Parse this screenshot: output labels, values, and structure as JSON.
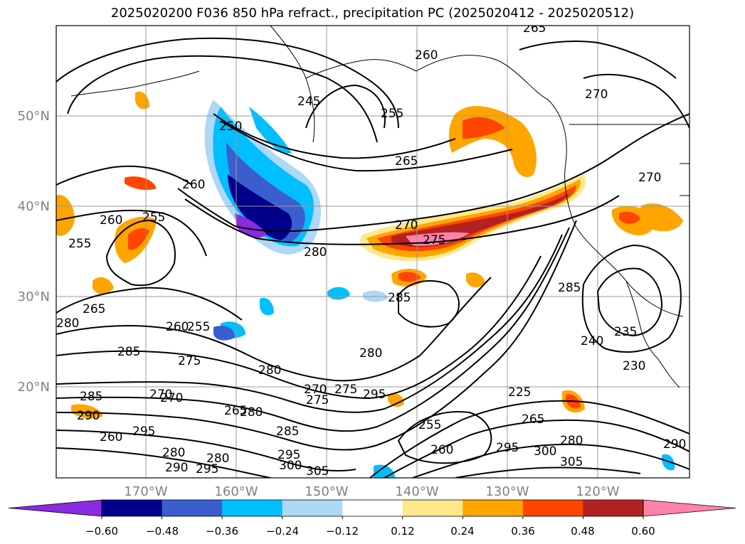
{
  "title": "2025020200 F036 850 hPa refract., precipitation PC (2025020412 - 2025020512)",
  "map": {
    "lon_ticks": [
      "170°W",
      "160°W",
      "150°W",
      "140°W",
      "130°W",
      "120°W"
    ],
    "lat_ticks": [
      "50°N",
      "40°N",
      "30°N",
      "20°N"
    ],
    "contour_labels": [
      "265",
      "260",
      "245",
      "255",
      "270",
      "250",
      "265",
      "270",
      "260",
      "255",
      "260",
      "255",
      "270",
      "275",
      "280",
      "280",
      "285",
      "285",
      "265",
      "260",
      "255",
      "280",
      "275",
      "280",
      "270",
      "275",
      "285",
      "295",
      "240",
      "235",
      "230",
      "225",
      "265",
      "280",
      "305",
      "300",
      "295",
      "290",
      "260",
      "255",
      "270",
      "285",
      "280",
      "295",
      "300",
      "305",
      "295",
      "280",
      "285",
      "290",
      "280",
      "265",
      "270",
      "260",
      "275",
      "290",
      "295"
    ]
  },
  "colorbar": {
    "tick_labels": [
      "−0.60",
      "−0.48",
      "−0.36",
      "−0.24",
      "−0.12",
      "0.12",
      "0.24",
      "0.36",
      "0.48",
      "0.60"
    ],
    "colors": [
      "#8a2be2",
      "#00008b",
      "#3a5fcd",
      "#00bfff",
      "#add8f6",
      "#ffffff",
      "#ffe88a",
      "#ffa500",
      "#ff4500",
      "#b22222",
      "#ff83a8"
    ]
  }
}
